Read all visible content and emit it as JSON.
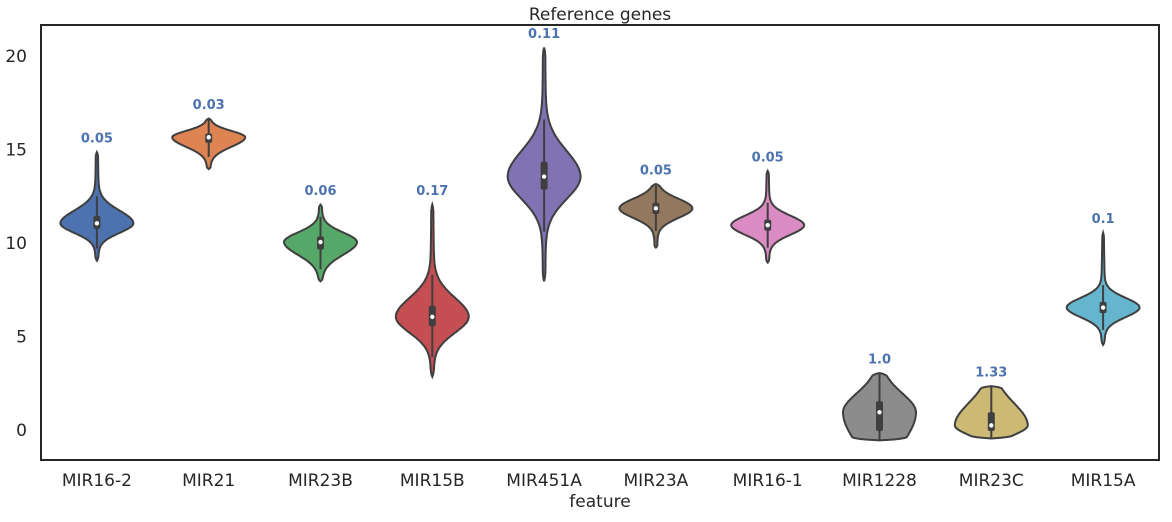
{
  "chart_data": {
    "type": "violin",
    "title": "Reference genes",
    "x_label": "feature",
    "categories": [
      "MIR16-2",
      "MIR21",
      "MIR23B",
      "MIR15B",
      "MIR451A",
      "MIR23A",
      "MIR16-1",
      "MIR1228",
      "MIR23C",
      "MIR15A"
    ],
    "colors": [
      "#4c72b0",
      "#dd8452",
      "#55a868",
      "#c44e52",
      "#8172b3",
      "#937860",
      "#da8bc3",
      "#8c8c8c",
      "#ccb974",
      "#64b5cd"
    ],
    "min": [
      9.1,
      14.0,
      8.0,
      2.9,
      8.0,
      9.8,
      9.0,
      -0.5,
      -0.4,
      4.6
    ],
    "q1": [
      10.8,
      15.4,
      9.7,
      5.6,
      12.9,
      11.6,
      10.7,
      0.0,
      0.0,
      6.3
    ],
    "median": [
      11.1,
      15.7,
      10.1,
      6.1,
      13.6,
      11.9,
      11.0,
      1.0,
      0.3,
      6.6
    ],
    "q3": [
      11.5,
      15.9,
      10.4,
      6.7,
      14.4,
      12.2,
      11.3,
      1.6,
      1.0,
      6.9
    ],
    "max": [
      14.9,
      16.7,
      12.1,
      12.1,
      20.5,
      13.2,
      13.9,
      3.1,
      2.4,
      10.6
    ],
    "annotations": [
      "0.05",
      "0.03",
      "0.06",
      "0.17",
      "0.11",
      "0.05",
      "0.05",
      "1.0",
      "1.33",
      "0.1"
    ],
    "annotation_color": "#4c72b0",
    "ylim": [
      -1.55,
      21.7
    ],
    "yticks": [
      0,
      5,
      10,
      15,
      20
    ]
  }
}
